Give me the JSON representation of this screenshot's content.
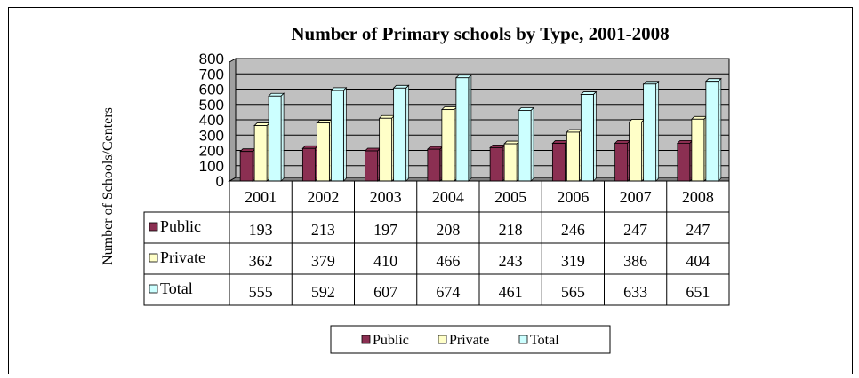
{
  "chart_data": {
    "type": "bar",
    "title": "Number of Primary schools by Type, 2001-2008",
    "ylabel": "Number of Schools/Centers",
    "xlabel": "",
    "categories": [
      "2001",
      "2002",
      "2003",
      "2004",
      "2005",
      "2006",
      "2007",
      "2008"
    ],
    "series": [
      {
        "name": "Public",
        "values": [
          193,
          213,
          197,
          208,
          218,
          246,
          247,
          247
        ],
        "color": "#8B2F52"
      },
      {
        "name": "Private",
        "values": [
          362,
          379,
          410,
          466,
          243,
          319,
          386,
          404
        ],
        "color": "#FFFFC8"
      },
      {
        "name": "Total",
        "values": [
          555,
          592,
          607,
          674,
          461,
          565,
          633,
          651
        ],
        "color": "#CCFFFF"
      }
    ],
    "yticks": [
      "0",
      "100",
      "200",
      "300",
      "400",
      "500",
      "600",
      "700",
      "800"
    ],
    "ylim": [
      0,
      800
    ],
    "grid": true,
    "plot_background": "#C0C0C0",
    "data_table": true,
    "legend_position": "bottom"
  }
}
